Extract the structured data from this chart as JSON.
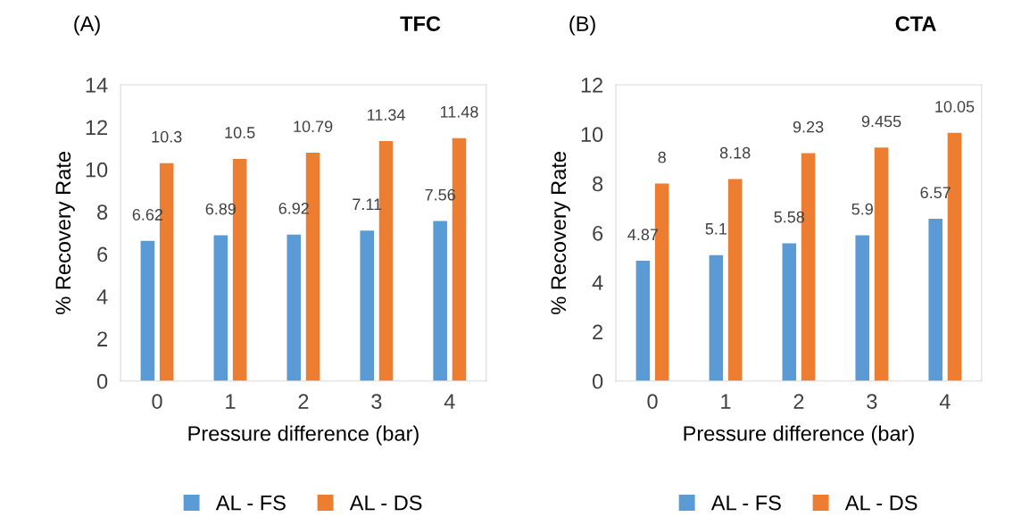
{
  "chart_data": [
    {
      "type": "bar",
      "title": "(A)",
      "subtitle": "TFC",
      "xlabel": "Pressure difference (bar)",
      "ylabel": "% Recovery Rate",
      "categories": [
        "0",
        "1",
        "2",
        "3",
        "4"
      ],
      "series": [
        {
          "name": "AL - FS",
          "color": "#5b9bd5",
          "values": [
            6.62,
            6.89,
            6.92,
            7.11,
            7.56
          ]
        },
        {
          "name": "AL - DS",
          "color": "#ed7d31",
          "values": [
            10.3,
            10.5,
            10.79,
            11.34,
            11.48
          ]
        }
      ],
      "ylim": [
        0,
        14
      ],
      "yticks": [
        0,
        2,
        4,
        6,
        8,
        10,
        12,
        14
      ],
      "data_labels": true,
      "grid": false,
      "legend": "bottom"
    },
    {
      "type": "bar",
      "title": "(B)",
      "subtitle": "CTA",
      "xlabel": "Pressure difference (bar)",
      "ylabel": "% Recovery Rate",
      "categories": [
        "0",
        "1",
        "2",
        "3",
        "4"
      ],
      "series": [
        {
          "name": "AL - FS",
          "color": "#5b9bd5",
          "values": [
            4.87,
            5.1,
            5.58,
            5.9,
            6.57
          ]
        },
        {
          "name": "AL - DS",
          "color": "#ed7d31",
          "values": [
            8,
            8.18,
            9.23,
            9.455,
            10.05
          ]
        }
      ],
      "ylim": [
        0,
        12
      ],
      "yticks": [
        0,
        2,
        4,
        6,
        8,
        10,
        12
      ],
      "data_labels": true,
      "grid": false,
      "legend": "bottom"
    }
  ]
}
